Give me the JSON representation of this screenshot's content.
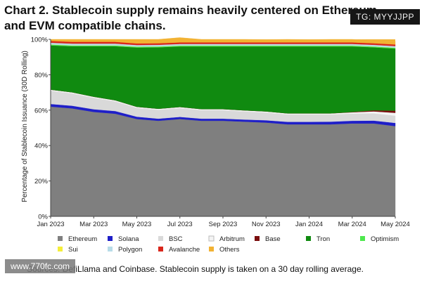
{
  "header": {
    "title": "Chart 2. Stablecoin supply remains heavily centered on Ethereum and EVM compatible chains.",
    "badge": "TG: MYYJJPP"
  },
  "footer": {
    "source": "Sources: DefiLlama and Coinbase. Stablecoin supply is taken on a 30 day rolling average.",
    "watermark": "www.770fc.com"
  },
  "chart_data": {
    "type": "area",
    "title": "Chart 2. Stablecoin supply remains heavily centered on Ethereum and EVM compatible chains.",
    "ylabel": "Percentage of Stablecoin Issuance (30D Rolling)",
    "xlabel": "",
    "ylim": [
      0,
      100
    ],
    "yticks": [
      "0%",
      "20%",
      "40%",
      "60%",
      "80%",
      "100%"
    ],
    "x": [
      "Jan 2023",
      "Feb 2023",
      "Mar 2023",
      "Apr 2023",
      "May 2023",
      "Jun 2023",
      "Jul 2023",
      "Aug 2023",
      "Sep 2023",
      "Oct 2023",
      "Nov 2023",
      "Dec 2023",
      "Jan 2024",
      "Feb 2024",
      "Mar 2024",
      "Apr 2024",
      "May 2024"
    ],
    "xticks": [
      "Jan 2023",
      "Mar 2023",
      "May 2023",
      "Jul 2023",
      "Sep 2023",
      "Nov 2023",
      "Jan 2024",
      "Mar 2024",
      "May 2024"
    ],
    "stacked": true,
    "legend_position": "bottom",
    "series": [
      {
        "name": "Ethereum",
        "color": "#7f7f7f",
        "values": [
          62,
          61,
          59,
          58,
          55,
          54,
          55,
          54,
          54,
          53.5,
          53,
          52,
          52,
          52,
          52.5,
          52.5,
          51
        ]
      },
      {
        "name": "Solana",
        "color": "#1f1fc8",
        "values": [
          1.5,
          1.5,
          1.5,
          1.5,
          1.3,
          1.2,
          1.2,
          1.2,
          1.2,
          1.2,
          1.3,
          1.4,
          1.4,
          1.5,
          1.5,
          1.6,
          1.8
        ]
      },
      {
        "name": "BSC",
        "color": "#d9d9d9",
        "values": [
          7.5,
          7,
          6.5,
          5.5,
          5,
          5,
          5,
          4.8,
          4.8,
          4.6,
          4.4,
          4.2,
          4.2,
          4.1,
          4.1,
          4.1,
          4.1
        ]
      },
      {
        "name": "Arbitrum",
        "color": "#f4f4f4",
        "values": [
          0.6,
          0.6,
          0.6,
          0.6,
          0.6,
          0.6,
          0.6,
          0.6,
          0.6,
          0.6,
          0.6,
          0.6,
          0.6,
          0.6,
          0.7,
          1.1,
          1.6
        ]
      },
      {
        "name": "Base",
        "color": "#7a0e0e",
        "values": [
          0,
          0,
          0,
          0,
          0,
          0,
          0,
          0,
          0,
          0,
          0,
          0,
          0,
          0,
          0.2,
          0.6,
          1.2
        ]
      },
      {
        "name": "Tron",
        "color": "#108a10",
        "values": [
          25,
          26,
          28.5,
          30.5,
          33.5,
          34.7,
          34.2,
          35.4,
          35.4,
          36.1,
          36.7,
          37.8,
          37.8,
          37.8,
          37.0,
          35.6,
          35.1
        ]
      },
      {
        "name": "Optimism",
        "color": "#4ee84e",
        "values": [
          0.5,
          0.5,
          0.5,
          0.5,
          0.5,
          0.5,
          0.5,
          0.5,
          0.5,
          0.5,
          0.5,
          0.5,
          0.5,
          0.5,
          0.5,
          0.5,
          0.5
        ]
      },
      {
        "name": "Sui",
        "color": "#f5ee3a",
        "values": [
          0,
          0,
          0,
          0,
          0,
          0,
          0,
          0,
          0,
          0,
          0,
          0,
          0,
          0,
          0,
          0,
          0
        ]
      },
      {
        "name": "Polygon",
        "color": "#b8dce8",
        "values": [
          1.0,
          1.0,
          1.0,
          1.0,
          0.9,
          0.9,
          0.9,
          0.9,
          0.9,
          0.9,
          0.9,
          0.9,
          0.9,
          0.9,
          0.9,
          0.9,
          0.9
        ]
      },
      {
        "name": "Avalanche",
        "color": "#d9261c",
        "values": [
          1.0,
          1.0,
          1.0,
          1.0,
          0.9,
          0.9,
          0.9,
          0.9,
          0.9,
          0.9,
          0.9,
          0.9,
          0.9,
          0.9,
          0.9,
          0.9,
          0.9
        ]
      },
      {
        "name": "Others",
        "color": "#f2b233",
        "values": [
          0.9,
          1.4,
          1.4,
          1.4,
          2.3,
          2.2,
          2.7,
          1.7,
          1.7,
          1.7,
          1.6,
          1.7,
          1.6,
          1.7,
          1.7,
          1.6,
          1.9
        ]
      }
    ]
  }
}
